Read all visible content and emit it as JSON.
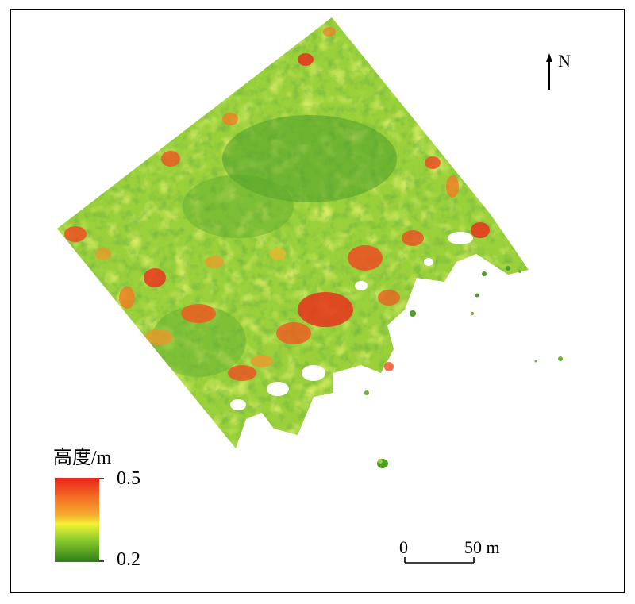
{
  "map": {
    "north_label": "N",
    "legend": {
      "title": "高度/m",
      "max_label": "0.5",
      "min_label": "0.2",
      "max_value": 0.5,
      "min_value": 0.2,
      "colors": {
        "high": "#e8231c",
        "upper": "#f39a24",
        "mid": "#f2f531",
        "lower": "#7cc32a",
        "low": "#2f8a1c"
      }
    },
    "scale_bar": {
      "zero_label": "0",
      "distance_label": "50 m"
    },
    "background": "#ffffff",
    "frame_color": "#000000"
  }
}
